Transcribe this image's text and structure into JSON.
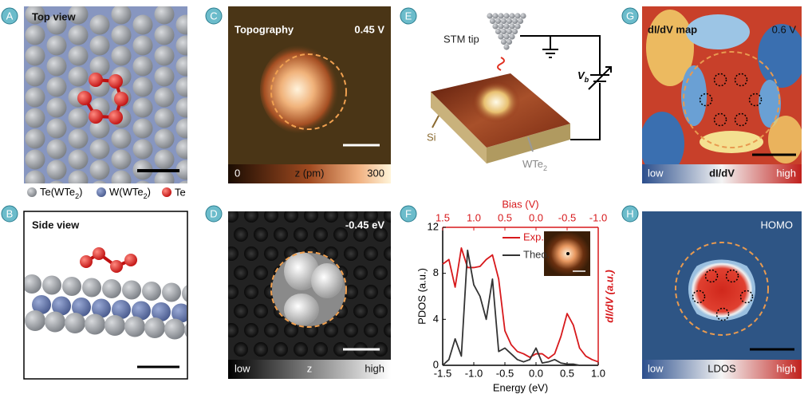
{
  "panel_a": {
    "letter": "A",
    "title": "Top view"
  },
  "atom_legend": [
    {
      "name": "Te(WTe",
      "sub": "2",
      "tail": ")"
    },
    {
      "name": "W(WTe",
      "sub": "2",
      "tail": ")"
    },
    {
      "name": "Te"
    }
  ],
  "panel_b": {
    "letter": "B",
    "title": "Side view"
  },
  "panel_c": {
    "letter": "C",
    "title": "Topography",
    "setpoint": "0.45 V",
    "colorbar": {
      "min": "0",
      "label": "z (pm)",
      "max": "300"
    }
  },
  "panel_d": {
    "letter": "D",
    "setpoint": "-0.45 eV",
    "colorbar": {
      "min": "low",
      "label": "z",
      "max": "high"
    }
  },
  "panel_e": {
    "letter": "E",
    "tip": "STM tip",
    "bias": "V",
    "bias_sub": "b",
    "substrate": "Si",
    "surface": "WTe",
    "surface_sub": "2"
  },
  "panel_f": {
    "letter": "F"
  },
  "chart_data": {
    "type": "line",
    "x_label": "Energy (eV)",
    "x2_label": "Bias (V)",
    "y_label": "PDOS (a.u.)",
    "y2_label": "dI/dV (a.u.)",
    "x": [
      -1.5,
      -1.4,
      -1.3,
      -1.2,
      -1.1,
      -1.0,
      -0.9,
      -0.8,
      -0.7,
      -0.6,
      -0.5,
      -0.4,
      -0.3,
      -0.2,
      -0.1,
      0.0,
      0.1,
      0.2,
      0.3,
      0.4,
      0.5,
      0.6,
      0.7,
      0.8,
      0.9,
      1.0
    ],
    "xlim": [
      -1.5,
      1.0
    ],
    "xticks": [
      -1.5,
      {
        "value": -1.0,
        "label": "-1.0"
      },
      -0.5,
      {
        "value": 0,
        "label": "0.0"
      },
      0.5,
      {
        "value": 1.0,
        "label": "1.0"
      }
    ],
    "x2lim": [
      1.5,
      -1.0
    ],
    "x2ticks": [
      1.5,
      {
        "value": 1.0,
        "label": "1.0"
      },
      0.5,
      {
        "value": 0,
        "label": "0.0"
      },
      -0.5,
      {
        "value": -1.0,
        "label": "-1.0"
      }
    ],
    "ylim": [
      0,
      12
    ],
    "yticks": [
      0,
      4,
      8,
      12
    ],
    "y2lim": [
      0,
      12
    ],
    "series": [
      {
        "name": "Exp.",
        "color": "#d7191c",
        "axis": "y2",
        "values": [
          8.8,
          9.2,
          6.8,
          10.2,
          8.5,
          8.5,
          8.6,
          9.2,
          9.6,
          7.5,
          3,
          1.8,
          1.2,
          1,
          0.7,
          1,
          1,
          0.6,
          1,
          2.5,
          4.5,
          3.5,
          1.5,
          0.8,
          0.5,
          0.3
        ]
      },
      {
        "name": "Theo.",
        "color": "#333333",
        "values": [
          0,
          0.5,
          2.3,
          0.8,
          10,
          7,
          6,
          4,
          7.5,
          1.2,
          1.5,
          1,
          0.5,
          0.3,
          0.5,
          1.5,
          0.2,
          0.3,
          0.5,
          0.2,
          0.1,
          0.1,
          0,
          0,
          0,
          0
        ]
      }
    ]
  },
  "panel_g": {
    "letter": "G",
    "title": "dI/dV map",
    "setpoint": "0.6 V",
    "colorbar": {
      "min": "low",
      "label": "dI/dV",
      "max": "high"
    }
  },
  "panel_h": {
    "letter": "H",
    "title": "HOMO",
    "colorbar": {
      "min": "low",
      "label": "LDOS",
      "max": "high"
    }
  }
}
